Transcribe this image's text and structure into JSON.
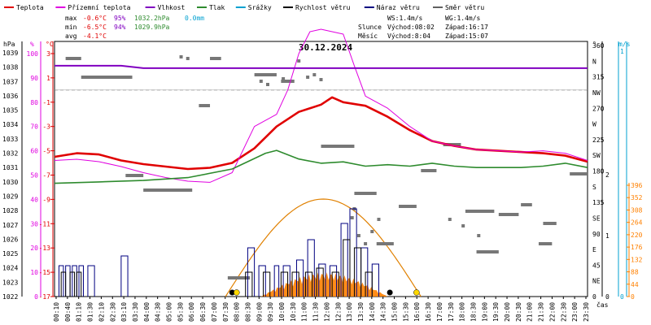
{
  "chart_data": {
    "type": "line",
    "title": "30.12.2024",
    "xlabel": "čas",
    "legend": [
      {
        "name": "Teplota",
        "color": "#e00000"
      },
      {
        "name": "Přízemní teplota",
        "color": "#e000e0"
      },
      {
        "name": "Vlhkost",
        "color": "#8000c0"
      },
      {
        "name": "Tlak",
        "color": "#2e8b2e"
      },
      {
        "name": "Srážky",
        "color": "#00a0d0"
      },
      {
        "name": "Rychlost větru",
        "color": "#000000"
      },
      {
        "name": "Náraz větru",
        "color": "#000080"
      },
      {
        "name": "Směr větru",
        "color": "#606060"
      }
    ],
    "stats": {
      "max": {
        "label": "max",
        "t": "-0.6°C",
        "h": "95%",
        "p": "1032.2hPa",
        "r": "0.0mm"
      },
      "min": {
        "label": "min",
        "t": "-6.5°C",
        "h": "94%",
        "p": "1029.9hPa"
      },
      "avg": {
        "label": "avg",
        "t": "-4.1°C"
      }
    },
    "wind": {
      "ws": "WS:1.4m/s",
      "wg": "WG:1.4m/s"
    },
    "sun": {
      "label": "Slunce",
      "rise": "Východ:08:02",
      "set": "Západ:16:17"
    },
    "moon": {
      "label": "Měsíc",
      "rise": "Východ:8:04",
      "set": "Západ:15:07"
    },
    "x_ticks": [
      "00:10",
      "00:40",
      "01:10",
      "01:30",
      "02:10",
      "02:30",
      "03:10",
      "03:30",
      "04:00",
      "04:30",
      "05:00",
      "05:30",
      "06:00",
      "06:30",
      "07:00",
      "07:30",
      "08:00",
      "08:30",
      "09:00",
      "09:30",
      "10:00",
      "10:30",
      "11:00",
      "11:30",
      "12:00",
      "12:30",
      "13:00",
      "13:30",
      "14:00",
      "14:30",
      "15:00",
      "15:30",
      "16:00",
      "16:30",
      "17:00",
      "17:30",
      "18:00",
      "18:30",
      "19:00",
      "19:30",
      "20:00",
      "20:30",
      "21:00",
      "21:30",
      "22:00",
      "22:30",
      "23:00",
      "23:30"
    ],
    "axes": {
      "hpa": {
        "label": "hPa",
        "ticks": [
          "1039",
          "1038",
          "1037",
          "1036",
          "1035",
          "1034",
          "1033",
          "1032",
          "1031",
          "1030",
          "1029",
          "1028",
          "1027",
          "1026",
          "1025",
          "1024",
          "1023",
          "1022"
        ]
      },
      "percent": {
        "label": "%",
        "ticks": [
          "100",
          "90",
          "80",
          "70",
          "60",
          "50",
          "40",
          "30",
          "20",
          "10",
          "0"
        ]
      },
      "celsius": {
        "label": "°C",
        "ticks": [
          "3",
          "1",
          "-1",
          "-3",
          "-5",
          "-7",
          "-9",
          "-11",
          "-13",
          "-15",
          "-17"
        ],
        "ylim": [
          -17,
          4
        ]
      },
      "direction": {
        "label": "°",
        "ticks": [
          "360",
          "N",
          "315",
          "NW",
          "270",
          "W",
          "225",
          "SW",
          "180",
          "S",
          "135",
          "SE",
          "90",
          "E",
          "45",
          "NE",
          "0"
        ]
      },
      "ms": {
        "label": "m/s",
        "ticks": [
          "2",
          "1",
          "0"
        ]
      },
      "mm": {
        "ticks": [
          "396",
          "352",
          "308",
          "264",
          "220",
          "176",
          "132",
          "88",
          "44",
          "0"
        ]
      },
      "mm_top": "1",
      "mm_bottom": "0"
    },
    "series": [
      {
        "name": "Teplota",
        "values": [
          [
            0,
            -5.5
          ],
          [
            1,
            -5.2
          ],
          [
            2,
            -5.3
          ],
          [
            3,
            -5.8
          ],
          [
            4,
            -6.1
          ],
          [
            5,
            -6.3
          ],
          [
            6,
            -6.5
          ],
          [
            7,
            -6.4
          ],
          [
            8,
            -6.0
          ],
          [
            9,
            -4.8
          ],
          [
            10,
            -3.0
          ],
          [
            11,
            -1.8
          ],
          [
            12,
            -1.2
          ],
          [
            12.5,
            -0.6
          ],
          [
            13,
            -1.0
          ],
          [
            14,
            -1.3
          ],
          [
            15,
            -2.2
          ],
          [
            16,
            -3.3
          ],
          [
            17,
            -4.2
          ],
          [
            18,
            -4.6
          ],
          [
            19,
            -4.9
          ],
          [
            20,
            -5.0
          ],
          [
            21,
            -5.1
          ],
          [
            22,
            -5.2
          ],
          [
            23,
            -5.4
          ],
          [
            24,
            -5.9
          ]
        ]
      },
      {
        "name": "Přízemní teplota",
        "values": [
          [
            0,
            -5.8
          ],
          [
            1,
            -5.7
          ],
          [
            2,
            -5.9
          ],
          [
            3,
            -6.3
          ],
          [
            4,
            -6.8
          ],
          [
            5,
            -7.2
          ],
          [
            6,
            -7.5
          ],
          [
            7,
            -7.6
          ],
          [
            8,
            -6.8
          ],
          [
            9,
            -3.0
          ],
          [
            10,
            -2.0
          ],
          [
            10.5,
            0.0
          ],
          [
            11,
            3.0
          ],
          [
            11.5,
            4.8
          ],
          [
            12,
            5.0
          ],
          [
            13,
            4.6
          ],
          [
            13.5,
            2.0
          ],
          [
            14,
            -0.5
          ],
          [
            15,
            -1.5
          ],
          [
            16,
            -3.0
          ],
          [
            17,
            -4.2
          ],
          [
            18,
            -4.6
          ],
          [
            19,
            -4.9
          ],
          [
            20,
            -5.0
          ],
          [
            21,
            -5.1
          ],
          [
            22,
            -5.0
          ],
          [
            23,
            -5.2
          ],
          [
            24,
            -5.8
          ]
        ]
      },
      {
        "name": "Vlhkost",
        "values": [
          [
            0,
            95
          ],
          [
            3,
            95
          ],
          [
            4,
            94
          ],
          [
            24,
            94
          ]
        ]
      },
      {
        "name": "Tlak",
        "values": [
          [
            0,
            1029.9
          ],
          [
            2,
            1030.0
          ],
          [
            4,
            1030.1
          ],
          [
            6,
            1030.3
          ],
          [
            8,
            1030.9
          ],
          [
            9.5,
            1032.0
          ],
          [
            10,
            1032.2
          ],
          [
            11,
            1031.6
          ],
          [
            12,
            1031.3
          ],
          [
            13,
            1031.4
          ],
          [
            14,
            1031.1
          ],
          [
            15,
            1031.2
          ],
          [
            16,
            1031.1
          ],
          [
            17,
            1031.3
          ],
          [
            18,
            1031.1
          ],
          [
            19,
            1031.0
          ],
          [
            20,
            1031.0
          ],
          [
            21,
            1031.0
          ],
          [
            22,
            1031.1
          ],
          [
            23,
            1031.3
          ],
          [
            24,
            1031.0
          ]
        ]
      }
    ]
  }
}
